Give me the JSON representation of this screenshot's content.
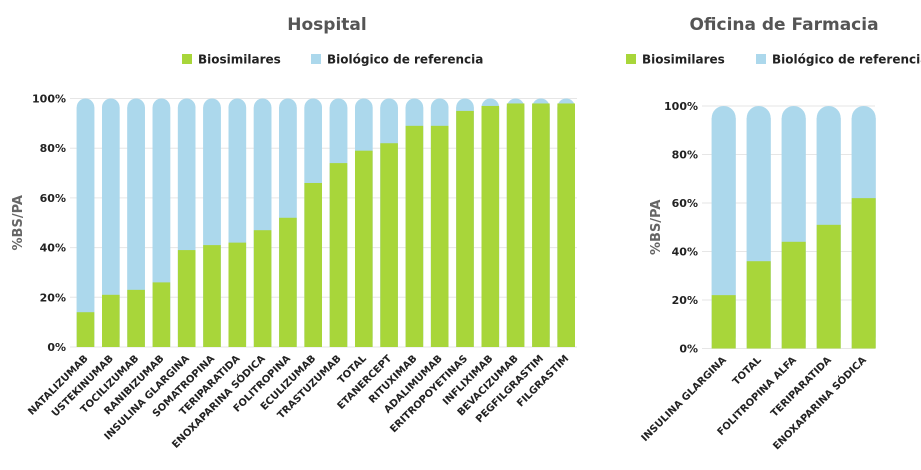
{
  "colors": {
    "biosimilares": "#a8d63a",
    "referencia": "#acd8ec",
    "grid": "#e6e6e6"
  },
  "chart_data": [
    {
      "type": "bar",
      "stacked": true,
      "title": "Hospital",
      "ylabel": "%BS/PA",
      "xlabel": "",
      "ylim": [
        0,
        100
      ],
      "yticks": [
        "0%",
        "20%",
        "40%",
        "60%",
        "80%",
        "100%"
      ],
      "grid": true,
      "legend_position": "top",
      "categories": [
        "NATALIZUMAB",
        "USTEKINUMAB",
        "TOCILIZUMAB",
        "RANIBIZUMAB",
        "INSULINA GLARGINA",
        "SOMATROPINA",
        "TERIPARATIDA",
        "ENOXAPARINA SÓDICA",
        "FOLITROPINA",
        "ECULIZUMAB",
        "TRASTUZUMAB",
        "TOTAL",
        "ETANERCEPT",
        "RITUXIMAB",
        "ADALIMUMAB",
        "ERITROPOYETINAS",
        "INFLIXIMAB",
        "BEVACIZUMAB",
        "PEGFILGRASTIM",
        "FILGRASTIM"
      ],
      "series": [
        {
          "name": "Biosimilares",
          "values": [
            14,
            21,
            23,
            26,
            39,
            41,
            42,
            47,
            52,
            66,
            74,
            79,
            82,
            89,
            89,
            95,
            97,
            98,
            98,
            98
          ]
        },
        {
          "name": "Biológico de referencia",
          "values": [
            86,
            79,
            77,
            74,
            61,
            59,
            58,
            53,
            48,
            34,
            26,
            21,
            18,
            11,
            11,
            5,
            3,
            2,
            2,
            2
          ]
        }
      ]
    },
    {
      "type": "bar",
      "stacked": true,
      "title": "Oficina de Farmacia",
      "ylabel": "%BS/PA",
      "xlabel": "",
      "ylim": [
        0,
        100
      ],
      "yticks": [
        "0%",
        "20%",
        "40%",
        "60%",
        "80%",
        "100%"
      ],
      "grid": true,
      "legend_position": "top",
      "categories": [
        "INSULINA GLARGINA",
        "TOTAL",
        "FOLITROPINA ALFA",
        "TERIPARATIDA",
        "ENOXAPARINA SÓDICA"
      ],
      "series": [
        {
          "name": "Biosimilares",
          "values": [
            22,
            36,
            44,
            51,
            62
          ]
        },
        {
          "name": "Biológico de referencia",
          "values": [
            78,
            64,
            56,
            49,
            38
          ]
        }
      ]
    }
  ]
}
